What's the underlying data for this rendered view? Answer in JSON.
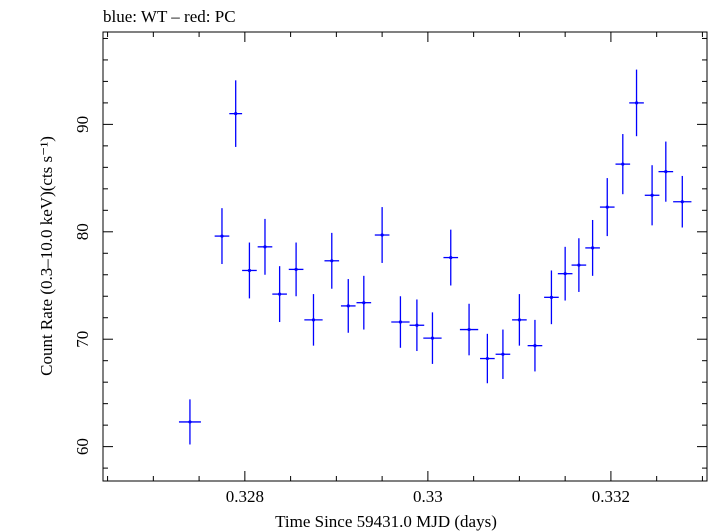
{
  "chart_data": {
    "type": "scatter",
    "title": "blue: WT – red: PC",
    "xlabel": "Time Since 59431.0 MJD (days)",
    "ylabel": "Count Rate (0.3–10.0 keV)(cts s⁻¹)",
    "xlim": [
      0.32645,
      0.33305
    ],
    "ylim": [
      56.8,
      98.6
    ],
    "x_ticks": [
      0.328,
      0.33,
      0.332
    ],
    "x_tick_labels": [
      "0.328",
      "0.33",
      "0.332"
    ],
    "y_ticks": [
      60,
      70,
      80,
      90
    ],
    "y_tick_labels": [
      "60",
      "70",
      "80",
      "90"
    ],
    "grid": false,
    "series": [
      {
        "color": "#0000ff",
        "points": [
          {
            "x": 0.3274,
            "xerr": 0.00012,
            "y": 62.3,
            "yerr": 2.1
          },
          {
            "x": 0.32775,
            "xerr": 8e-05,
            "y": 79.6,
            "yerr": 2.6
          },
          {
            "x": 0.3279,
            "xerr": 7e-05,
            "y": 91.0,
            "yerr": 3.1
          },
          {
            "x": 0.32805,
            "xerr": 8e-05,
            "y": 76.4,
            "yerr": 2.6
          },
          {
            "x": 0.32822,
            "xerr": 8e-05,
            "y": 78.6,
            "yerr": 2.6
          },
          {
            "x": 0.32838,
            "xerr": 8e-05,
            "y": 74.2,
            "yerr": 2.6
          },
          {
            "x": 0.32856,
            "xerr": 8e-05,
            "y": 76.5,
            "yerr": 2.5
          },
          {
            "x": 0.32875,
            "xerr": 0.0001,
            "y": 71.8,
            "yerr": 2.4
          },
          {
            "x": 0.32895,
            "xerr": 8e-05,
            "y": 77.3,
            "yerr": 2.6
          },
          {
            "x": 0.32913,
            "xerr": 8e-05,
            "y": 73.1,
            "yerr": 2.5
          },
          {
            "x": 0.3293,
            "xerr": 8e-05,
            "y": 73.4,
            "yerr": 2.5
          },
          {
            "x": 0.3295,
            "xerr": 8e-05,
            "y": 79.7,
            "yerr": 2.6
          },
          {
            "x": 0.3297,
            "xerr": 0.0001,
            "y": 71.6,
            "yerr": 2.4
          },
          {
            "x": 0.32988,
            "xerr": 8e-05,
            "y": 71.3,
            "yerr": 2.4
          },
          {
            "x": 0.33005,
            "xerr": 0.0001,
            "y": 70.1,
            "yerr": 2.4
          },
          {
            "x": 0.33025,
            "xerr": 8e-05,
            "y": 77.6,
            "yerr": 2.6
          },
          {
            "x": 0.33045,
            "xerr": 0.0001,
            "y": 70.9,
            "yerr": 2.4
          },
          {
            "x": 0.33065,
            "xerr": 8e-05,
            "y": 68.2,
            "yerr": 2.3
          },
          {
            "x": 0.33082,
            "xerr": 8e-05,
            "y": 68.6,
            "yerr": 2.3
          },
          {
            "x": 0.331,
            "xerr": 8e-05,
            "y": 71.8,
            "yerr": 2.4
          },
          {
            "x": 0.33117,
            "xerr": 8e-05,
            "y": 69.4,
            "yerr": 2.4
          },
          {
            "x": 0.33135,
            "xerr": 8e-05,
            "y": 73.9,
            "yerr": 2.5
          },
          {
            "x": 0.3315,
            "xerr": 8e-05,
            "y": 76.1,
            "yerr": 2.5
          },
          {
            "x": 0.33165,
            "xerr": 8e-05,
            "y": 76.9,
            "yerr": 2.5
          },
          {
            "x": 0.3318,
            "xerr": 8e-05,
            "y": 78.5,
            "yerr": 2.6
          },
          {
            "x": 0.33196,
            "xerr": 8e-05,
            "y": 82.3,
            "yerr": 2.7
          },
          {
            "x": 0.33213,
            "xerr": 8e-05,
            "y": 86.3,
            "yerr": 2.8
          },
          {
            "x": 0.33228,
            "xerr": 8e-05,
            "y": 92.0,
            "yerr": 3.1
          },
          {
            "x": 0.33245,
            "xerr": 8e-05,
            "y": 83.4,
            "yerr": 2.8
          },
          {
            "x": 0.3326,
            "xerr": 8e-05,
            "y": 85.6,
            "yerr": 2.8
          },
          {
            "x": 0.33278,
            "xerr": 0.0001,
            "y": 82.8,
            "yerr": 2.4
          }
        ]
      }
    ]
  }
}
